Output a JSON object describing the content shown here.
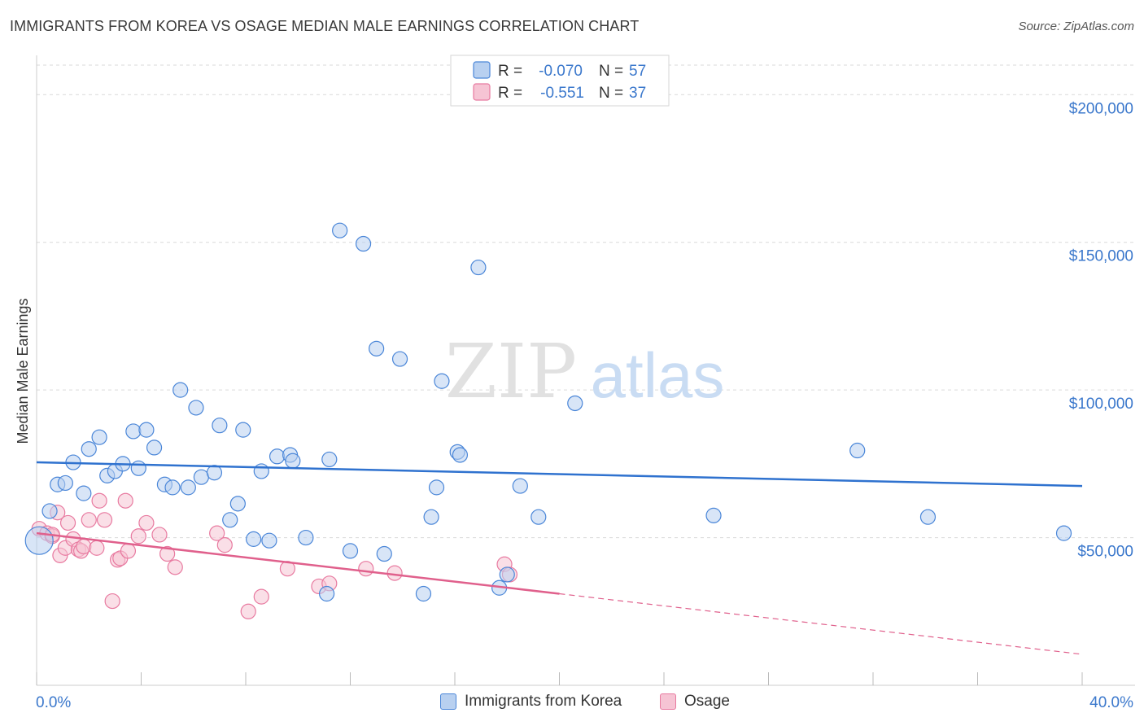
{
  "header": {
    "title": "IMMIGRANTS FROM KOREA VS OSAGE MEDIAN MALE EARNINGS CORRELATION CHART",
    "source": "Source: ZipAtlas.com"
  },
  "watermark": {
    "zip": "ZIP",
    "atlas": "atlas"
  },
  "colors": {
    "blue": "#4a86d8",
    "blue_fill": "#b8d0f0",
    "blue_line": "#2f72cf",
    "pink": "#e87aa0",
    "pink_fill": "#f6c4d4",
    "pink_line": "#e0608c",
    "axis_text": "#3b78cc",
    "grid": "#d9d9d9"
  },
  "legend_top": {
    "rows": [
      {
        "r_label": "R =",
        "r_value": "-0.070",
        "n_label": "N =",
        "n_value": "57",
        "series": "blue"
      },
      {
        "r_label": "R =",
        "r_value": "-0.551",
        "n_label": "N =",
        "n_value": "37",
        "series": "pink"
      }
    ]
  },
  "legend_bottom": {
    "items": [
      {
        "label": "Immigrants from Korea",
        "series": "blue"
      },
      {
        "label": "Osage",
        "series": "pink"
      }
    ]
  },
  "chart_data": {
    "type": "scatter",
    "title": "IMMIGRANTS FROM KOREA VS OSAGE MEDIAN MALE EARNINGS CORRELATION CHART",
    "xlabel": "",
    "ylabel": "Median Male Earnings",
    "xlim": [
      0,
      40
    ],
    "ylim": [
      0,
      210000
    ],
    "x_tick_labels": [
      "0.0%",
      "40.0%"
    ],
    "y_ticks": [
      50000,
      100000,
      150000,
      200000
    ],
    "y_tick_labels": [
      "$50,000",
      "$100,000",
      "$150,000",
      "$200,000"
    ],
    "grid": true,
    "legend_position": "top-center",
    "series": [
      {
        "name": "Immigrants from Korea",
        "color": "blue",
        "r": -0.07,
        "n": 57,
        "trend": {
          "x": [
            0,
            40
          ],
          "y": [
            75500,
            67500
          ]
        },
        "points": [
          [
            0.1,
            49000
          ],
          [
            0.5,
            59000
          ],
          [
            0.8,
            68000
          ],
          [
            1.1,
            68500
          ],
          [
            1.4,
            75500
          ],
          [
            1.8,
            65000
          ],
          [
            2.0,
            80000
          ],
          [
            2.4,
            84000
          ],
          [
            2.7,
            71000
          ],
          [
            3.0,
            72500
          ],
          [
            3.3,
            75000
          ],
          [
            3.7,
            86000
          ],
          [
            3.9,
            73500
          ],
          [
            4.2,
            86500
          ],
          [
            4.5,
            80500
          ],
          [
            4.9,
            68000
          ],
          [
            5.2,
            67000
          ],
          [
            5.5,
            100000
          ],
          [
            5.8,
            67000
          ],
          [
            6.1,
            94000
          ],
          [
            6.3,
            70500
          ],
          [
            6.8,
            72000
          ],
          [
            7.0,
            88000
          ],
          [
            7.4,
            56000
          ],
          [
            7.7,
            61500
          ],
          [
            7.9,
            86500
          ],
          [
            8.3,
            49500
          ],
          [
            8.6,
            72500
          ],
          [
            8.9,
            49000
          ],
          [
            9.2,
            77500
          ],
          [
            9.7,
            78000
          ],
          [
            9.8,
            76000
          ],
          [
            10.3,
            50000
          ],
          [
            11.1,
            31000
          ],
          [
            11.2,
            76500
          ],
          [
            11.6,
            154000
          ],
          [
            12.0,
            45500
          ],
          [
            12.5,
            149500
          ],
          [
            13.0,
            114000
          ],
          [
            13.3,
            44500
          ],
          [
            13.9,
            110500
          ],
          [
            14.8,
            31000
          ],
          [
            15.1,
            57000
          ],
          [
            15.3,
            67000
          ],
          [
            15.5,
            103000
          ],
          [
            16.1,
            79000
          ],
          [
            16.2,
            78000
          ],
          [
            16.9,
            141500
          ],
          [
            17.7,
            33000
          ],
          [
            18.0,
            37500
          ],
          [
            18.5,
            67500
          ],
          [
            19.2,
            57000
          ],
          [
            20.6,
            95500
          ],
          [
            25.9,
            57500
          ],
          [
            31.4,
            79500
          ],
          [
            34.1,
            57000
          ],
          [
            39.3,
            51500
          ]
        ]
      },
      {
        "name": "Osage",
        "color": "pink",
        "r": -0.551,
        "n": 37,
        "trend": {
          "x": [
            0,
            20
          ],
          "y": [
            51500,
            31000
          ]
        },
        "trend_extension": {
          "x": [
            20,
            40
          ],
          "y": [
            31000,
            10500
          ]
        },
        "points": [
          [
            0.1,
            53000
          ],
          [
            0.4,
            51500
          ],
          [
            0.6,
            50500
          ],
          [
            0.8,
            58500
          ],
          [
            0.9,
            44000
          ],
          [
            1.1,
            46500
          ],
          [
            1.2,
            55000
          ],
          [
            1.4,
            49500
          ],
          [
            1.6,
            46000
          ],
          [
            1.7,
            45500
          ],
          [
            1.8,
            47000
          ],
          [
            2.0,
            56000
          ],
          [
            2.3,
            46500
          ],
          [
            2.4,
            62500
          ],
          [
            2.6,
            56000
          ],
          [
            2.9,
            28500
          ],
          [
            3.1,
            42500
          ],
          [
            3.2,
            43000
          ],
          [
            3.4,
            62500
          ],
          [
            3.5,
            45500
          ],
          [
            3.9,
            50500
          ],
          [
            4.2,
            55000
          ],
          [
            4.7,
            51000
          ],
          [
            5.0,
            44500
          ],
          [
            5.3,
            40000
          ],
          [
            6.9,
            51500
          ],
          [
            7.2,
            47500
          ],
          [
            8.1,
            25000
          ],
          [
            8.6,
            30000
          ],
          [
            9.6,
            39500
          ],
          [
            10.8,
            33500
          ],
          [
            11.2,
            34500
          ],
          [
            12.6,
            39500
          ],
          [
            13.7,
            38000
          ],
          [
            17.9,
            41000
          ],
          [
            18.1,
            37500
          ],
          [
            0.6,
            51000
          ]
        ]
      }
    ]
  }
}
